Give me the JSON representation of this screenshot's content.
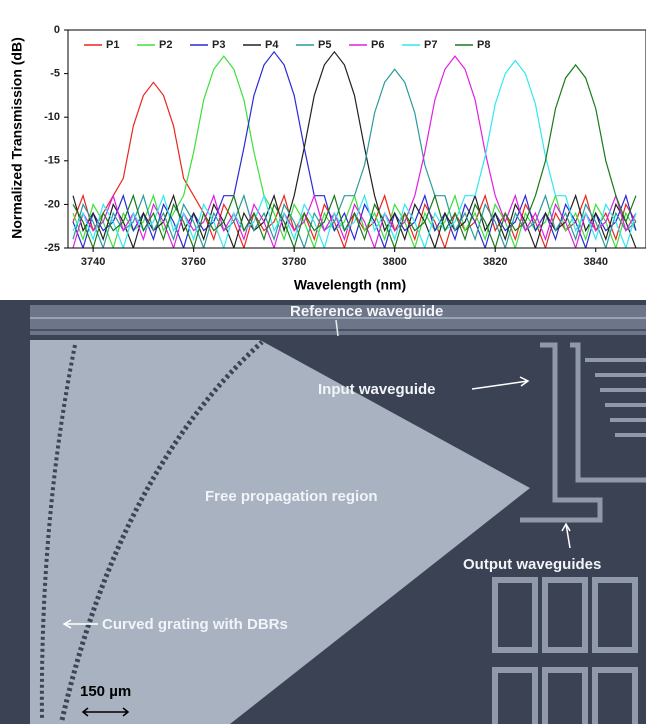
{
  "chart_data": {
    "type": "line",
    "ylabel": "Normalized Transmission (dB)",
    "xlabel": "Wavelength (nm)",
    "xlim": [
      3735,
      3850
    ],
    "xticks": [
      3740,
      3760,
      3780,
      3800,
      3820,
      3840
    ],
    "ylim": [
      -25,
      0
    ],
    "yticks": [
      0,
      -5,
      -10,
      -15,
      -20,
      -25
    ],
    "legend": "top",
    "x": [
      3736,
      3738,
      3740,
      3742,
      3744,
      3746,
      3748,
      3750,
      3752,
      3754,
      3756,
      3758,
      3760,
      3762,
      3764,
      3766,
      3768,
      3770,
      3772,
      3774,
      3776,
      3778,
      3780,
      3782,
      3784,
      3786,
      3788,
      3790,
      3792,
      3794,
      3796,
      3798,
      3800,
      3802,
      3804,
      3806,
      3808,
      3810,
      3812,
      3814,
      3816,
      3818,
      3820,
      3822,
      3824,
      3826,
      3828,
      3830,
      3832,
      3834,
      3836,
      3838,
      3840,
      3842,
      3844,
      3846,
      3848
    ],
    "series": [
      {
        "name": "P1",
        "color": "#e8271f",
        "values": [
          -22,
          -19,
          -23,
          -21,
          -19,
          -17,
          -11,
          -7.5,
          -6,
          -7.5,
          -11,
          -17,
          -19,
          -21,
          -24,
          -20,
          -22,
          -25,
          -21,
          -23,
          -22,
          -19,
          -23,
          -21,
          -24,
          -20,
          -22,
          -25,
          -21,
          -23,
          -22,
          -19,
          -23,
          -21,
          -24,
          -20,
          -22,
          -25,
          -21,
          -23,
          -22,
          -19,
          -23,
          -21,
          -24,
          -20,
          -22,
          -25,
          -21,
          -23,
          -22,
          -19,
          -23,
          -21,
          -24,
          -20,
          -22
        ]
      },
      {
        "name": "P2",
        "color": "#3ce03c",
        "values": [
          -21,
          -24,
          -20,
          -22,
          -25,
          -21,
          -23,
          -22,
          -19,
          -23,
          -21,
          -19,
          -14,
          -8,
          -4.5,
          -3,
          -4.5,
          -8,
          -14,
          -19,
          -21,
          -24,
          -20,
          -22,
          -25,
          -21,
          -23,
          -22,
          -19,
          -23,
          -21,
          -24,
          -20,
          -22,
          -25,
          -21,
          -23,
          -22,
          -19,
          -23,
          -21,
          -24,
          -20,
          -22,
          -25,
          -21,
          -23,
          -22,
          -19,
          -23,
          -21,
          -24,
          -20,
          -22,
          -25,
          -21,
          -23
        ]
      },
      {
        "name": "P3",
        "color": "#2a2ad8",
        "values": [
          -22,
          -25,
          -21,
          -23,
          -22,
          -19,
          -23,
          -21,
          -24,
          -20,
          -22,
          -25,
          -21,
          -23,
          -22,
          -19,
          -19,
          -13.5,
          -7.5,
          -4,
          -2.5,
          -4,
          -7.5,
          -13.5,
          -19,
          -19,
          -23,
          -21,
          -24,
          -20,
          -22,
          -25,
          -21,
          -23,
          -22,
          -19,
          -23,
          -21,
          -24,
          -20,
          -22,
          -25,
          -21,
          -23,
          -22,
          -19,
          -23,
          -21,
          -24,
          -20,
          -22,
          -25,
          -21,
          -23,
          -22,
          -19,
          -23
        ]
      },
      {
        "name": "P4",
        "color": "#222222",
        "values": [
          -19,
          -23,
          -21,
          -24,
          -20,
          -22,
          -25,
          -21,
          -23,
          -22,
          -19,
          -23,
          -21,
          -24,
          -20,
          -22,
          -25,
          -21,
          -23,
          -22,
          -19,
          -23,
          -19,
          -13.5,
          -7.5,
          -4,
          -2.5,
          -4,
          -7.5,
          -13.5,
          -19,
          -23,
          -21,
          -24,
          -20,
          -22,
          -25,
          -21,
          -23,
          -22,
          -19,
          -23,
          -21,
          -24,
          -20,
          -22,
          -25,
          -21,
          -23,
          -22,
          -19,
          -23,
          -21,
          -24,
          -20,
          -22,
          -25
        ]
      },
      {
        "name": "P5",
        "color": "#2a9a9a",
        "values": [
          -24,
          -20,
          -22,
          -25,
          -21,
          -23,
          -22,
          -19,
          -23,
          -21,
          -24,
          -20,
          -22,
          -25,
          -21,
          -23,
          -22,
          -19,
          -23,
          -21,
          -24,
          -20,
          -22,
          -25,
          -21,
          -23,
          -22,
          -19,
          -19,
          -15.5,
          -9.5,
          -6,
          -4.5,
          -6,
          -9.5,
          -15.5,
          -19,
          -19,
          -23,
          -21,
          -24,
          -20,
          -22,
          -25,
          -21,
          -23,
          -22,
          -19,
          -23,
          -21,
          -24,
          -20,
          -22,
          -25,
          -21,
          -23,
          -22
        ]
      },
      {
        "name": "P6",
        "color": "#e020e0",
        "values": [
          -25,
          -21,
          -23,
          -22,
          -19,
          -23,
          -21,
          -24,
          -20,
          -22,
          -25,
          -21,
          -23,
          -22,
          -19,
          -23,
          -21,
          -24,
          -20,
          -22,
          -25,
          -21,
          -23,
          -22,
          -19,
          -23,
          -21,
          -24,
          -20,
          -22,
          -25,
          -21,
          -23,
          -22,
          -19,
          -14,
          -8,
          -4.5,
          -3,
          -4.5,
          -8,
          -14,
          -19,
          -22,
          -19,
          -23,
          -21,
          -24,
          -20,
          -22,
          -25,
          -21,
          -23,
          -22,
          -19,
          -23,
          -21
        ]
      },
      {
        "name": "P7",
        "color": "#30e8f0",
        "values": [
          -23,
          -21,
          -24,
          -20,
          -22,
          -25,
          -21,
          -23,
          -22,
          -19,
          -23,
          -21,
          -24,
          -20,
          -22,
          -25,
          -21,
          -23,
          -22,
          -19,
          -23,
          -21,
          -24,
          -20,
          -22,
          -25,
          -21,
          -23,
          -22,
          -19,
          -23,
          -21,
          -24,
          -20,
          -22,
          -25,
          -21,
          -23,
          -22,
          -19,
          -19,
          -14.5,
          -8.5,
          -5,
          -3.5,
          -5,
          -8.5,
          -14.5,
          -19,
          -19,
          -23,
          -21,
          -24,
          -20,
          -22,
          -25,
          -21
        ]
      },
      {
        "name": "P8",
        "color": "#1a7a1a",
        "values": [
          -20,
          -22,
          -25,
          -21,
          -23,
          -22,
          -19,
          -23,
          -21,
          -24,
          -20,
          -22,
          -25,
          -21,
          -23,
          -22,
          -19,
          -23,
          -21,
          -24,
          -20,
          -22,
          -25,
          -21,
          -23,
          -22,
          -19,
          -23,
          -21,
          -24,
          -20,
          -22,
          -25,
          -21,
          -23,
          -22,
          -19,
          -23,
          -21,
          -24,
          -20,
          -22,
          -25,
          -21,
          -23,
          -22,
          -19,
          -15,
          -9,
          -5.5,
          -4,
          -5.5,
          -9,
          -15,
          -19,
          -22,
          -19
        ]
      }
    ]
  },
  "micrograph": {
    "labels": [
      "Reference waveguide",
      "Input waveguide",
      "Free propagation region",
      "Output waveguides",
      "Curved grating with DBRs"
    ],
    "scale_bar": "150 µm"
  }
}
